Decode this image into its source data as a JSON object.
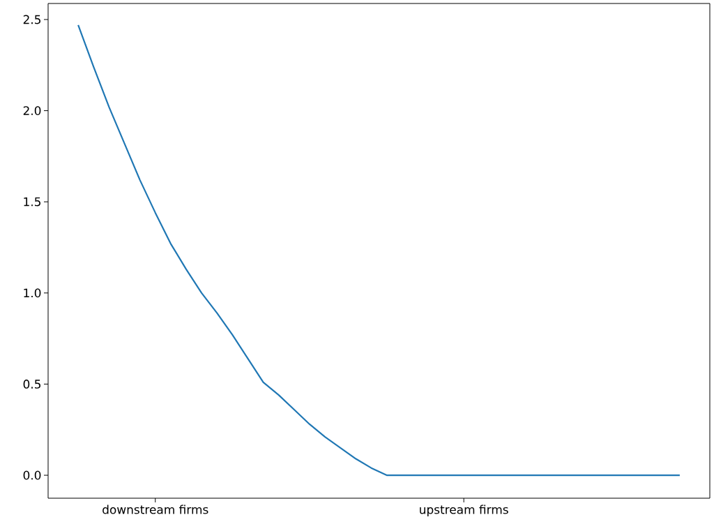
{
  "chart_data": {
    "type": "line",
    "categories": [
      null,
      null,
      null,
      null,
      null,
      "downstream firms",
      null,
      null,
      null,
      null,
      null,
      null,
      null,
      null,
      null,
      null,
      null,
      null,
      null,
      null,
      null,
      null,
      null,
      null,
      null,
      "upstream firms",
      null,
      null,
      null,
      null,
      null,
      null,
      null,
      null,
      null,
      null,
      null,
      null,
      null,
      null
    ],
    "series": [
      {
        "color": "#1f77b4",
        "values": [
          2.47,
          2.24,
          2.02,
          1.82,
          1.62,
          1.44,
          1.27,
          1.13,
          1.0,
          0.89,
          0.77,
          0.64,
          0.51,
          0.44,
          0.36,
          0.28,
          0.21,
          0.15,
          0.09,
          0.04,
          0,
          0,
          0,
          0,
          0,
          0,
          0,
          0,
          0,
          0,
          0,
          0,
          0,
          0,
          0,
          0,
          0,
          0,
          0,
          0
        ]
      }
    ],
    "ylim": [
      -0.126,
      2.588
    ],
    "yticks": [
      {
        "value": 0,
        "label": "0.0"
      },
      {
        "value": 0.5,
        "label": "0.5"
      },
      {
        "value": 1,
        "label": "1.0"
      },
      {
        "value": 1.5,
        "label": "1.5"
      },
      {
        "value": 2,
        "label": "2.0"
      },
      {
        "value": 2.5,
        "label": "2.5"
      }
    ],
    "grid": false
  }
}
